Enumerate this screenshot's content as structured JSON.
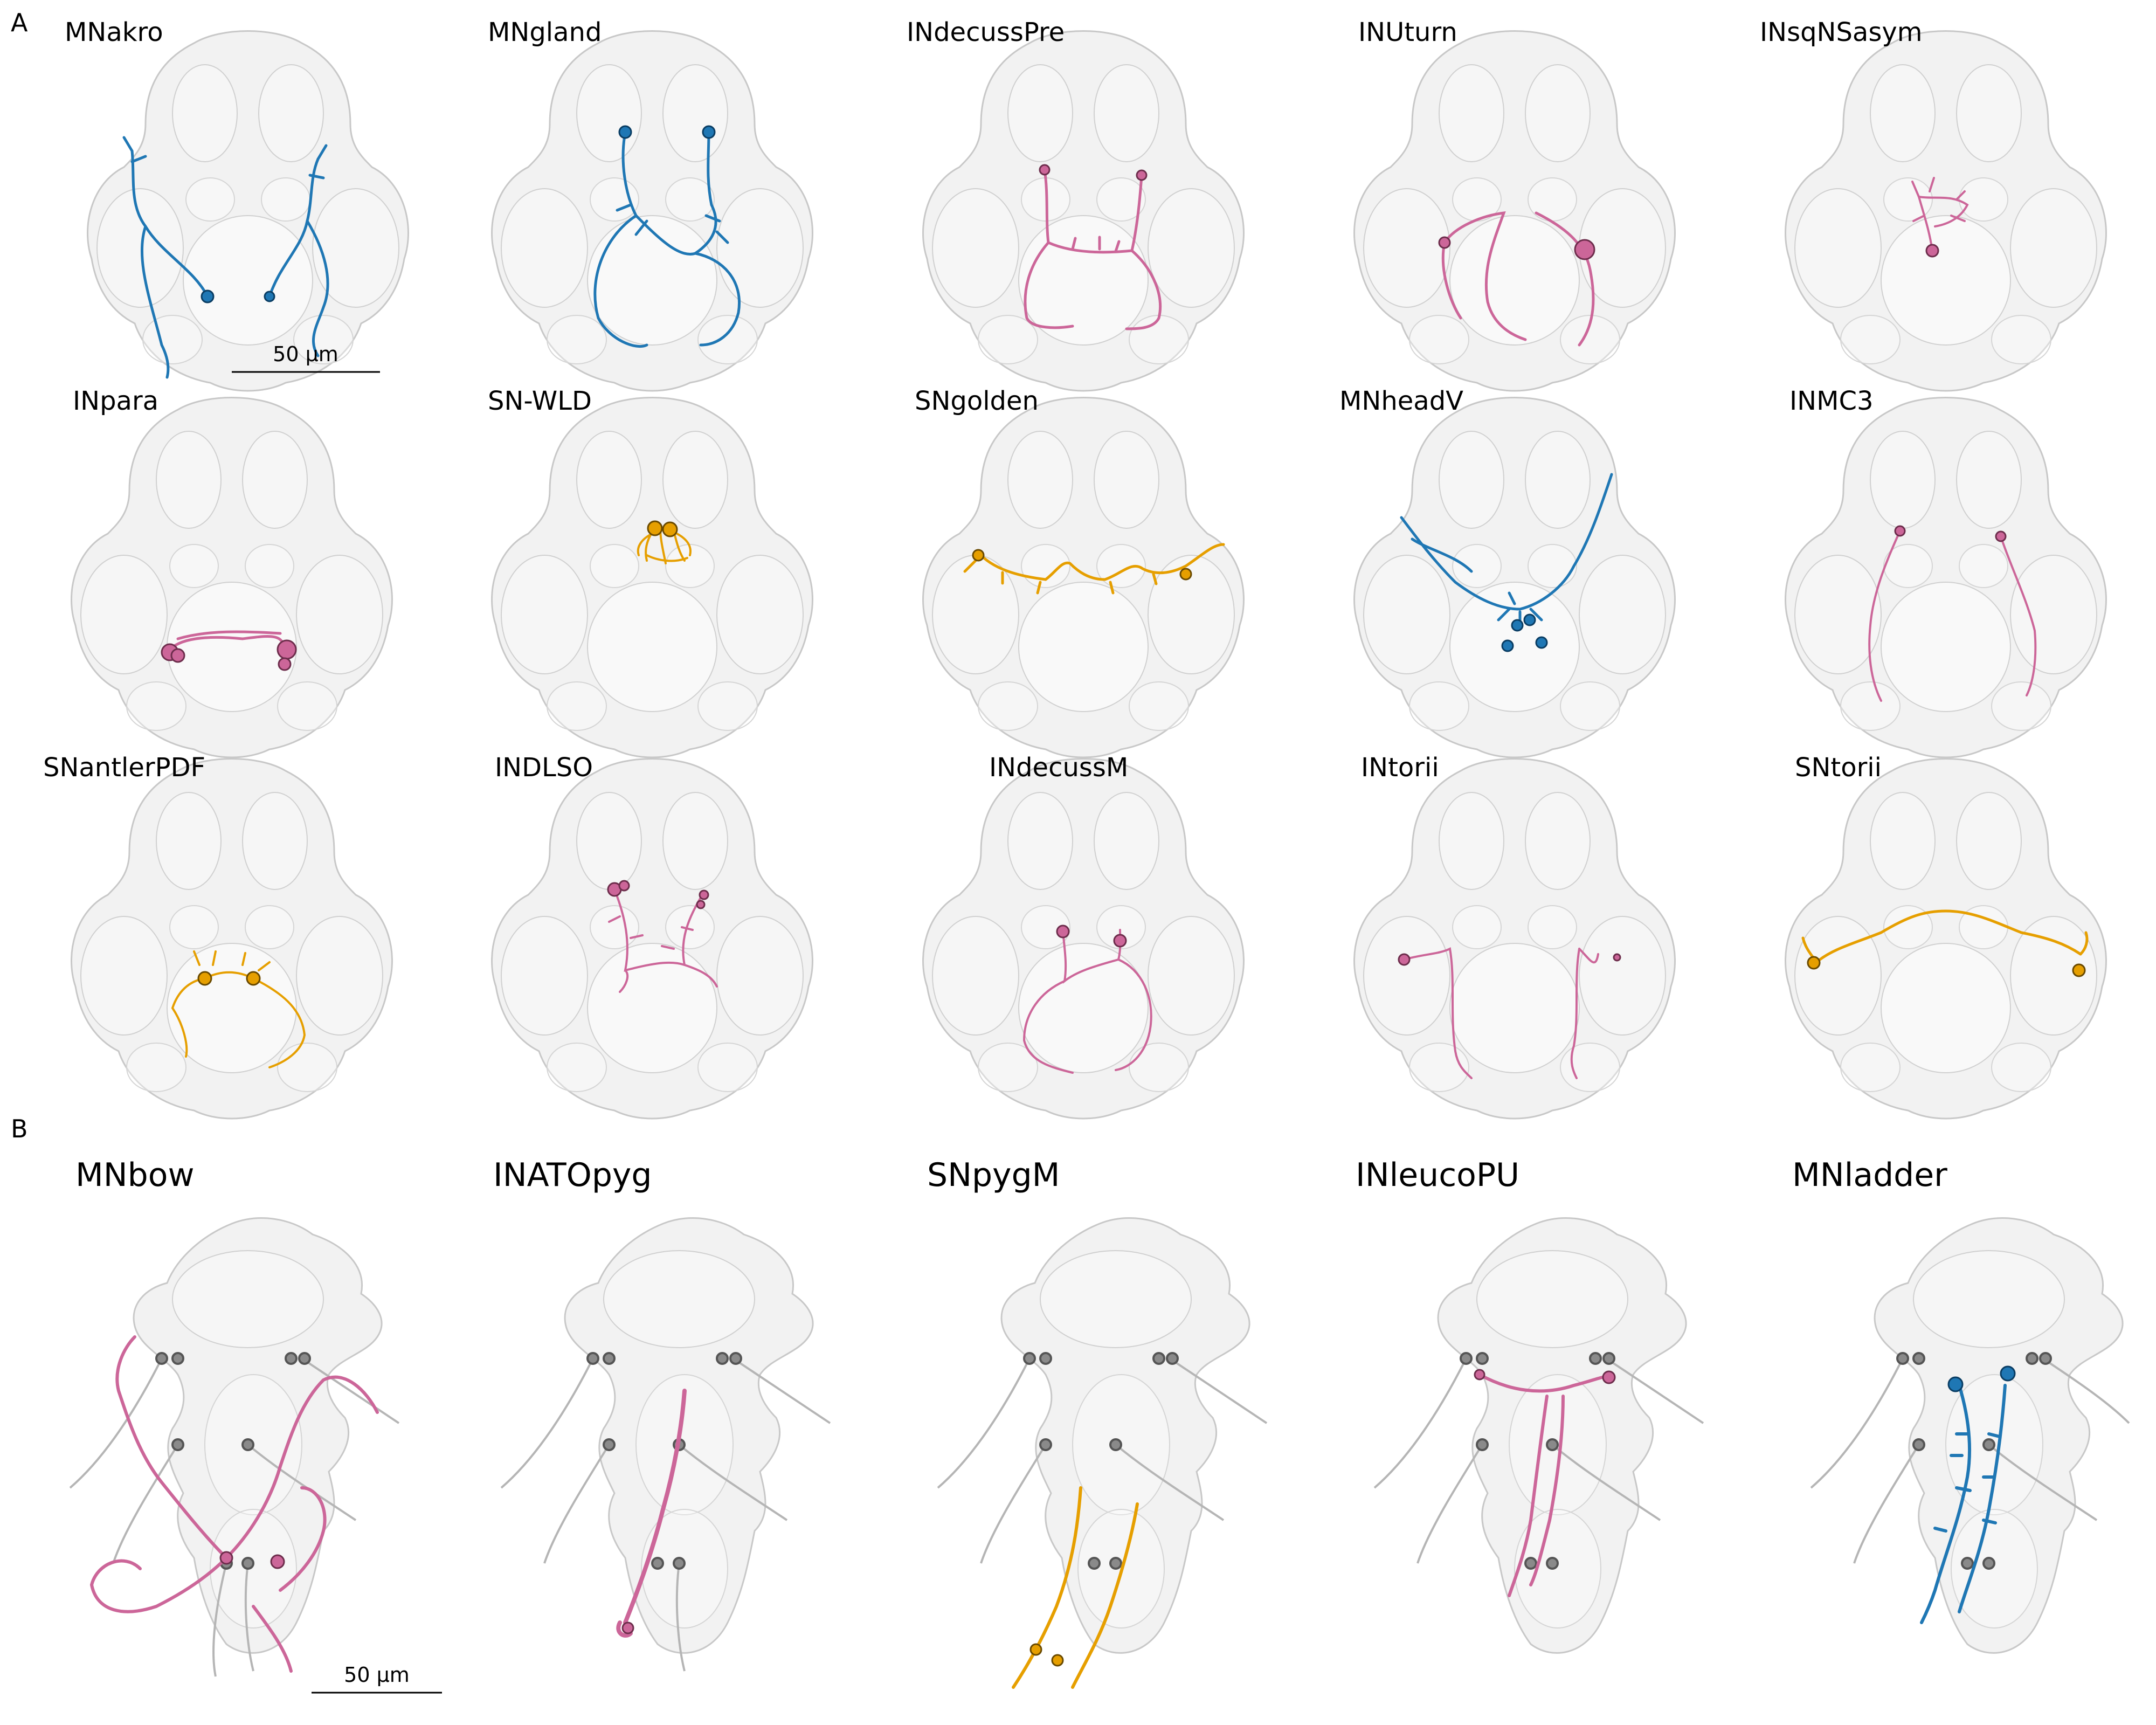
{
  "panels": [
    {
      "label": "A",
      "neurons": [
        {
          "name": "MNakro",
          "color": "blue"
        },
        {
          "name": "MNgland",
          "color": "blue"
        },
        {
          "name": "INdecussPre",
          "color": "pink"
        },
        {
          "name": "INUturn",
          "color": "pink"
        },
        {
          "name": "INsqNSasym",
          "color": "pink"
        },
        {
          "name": "INpara",
          "color": "pink"
        },
        {
          "name": "SN-WLD",
          "color": "orange"
        },
        {
          "name": "SNgolden",
          "color": "orange"
        },
        {
          "name": "MNheadV",
          "color": "blue"
        },
        {
          "name": "INMC3",
          "color": "pink"
        },
        {
          "name": "SNantlerPDF",
          "color": "orange"
        },
        {
          "name": "INDLSO",
          "color": "pink"
        },
        {
          "name": "INdecussM",
          "color": "pink"
        },
        {
          "name": "INtorii",
          "color": "pink"
        },
        {
          "name": "SNtorii",
          "color": "orange"
        }
      ],
      "scale_bar": "50 μm"
    },
    {
      "label": "B",
      "neurons": [
        {
          "name": "MNbow",
          "color": "pink"
        },
        {
          "name": "INATOpyg",
          "color": "pink"
        },
        {
          "name": "SNpygM",
          "color": "orange"
        },
        {
          "name": "INleucoPU",
          "color": "pink"
        },
        {
          "name": "MNladder",
          "color": "blue"
        }
      ],
      "scale_bar": "50 μm"
    }
  ],
  "colors": {
    "blue": "#1f77b4",
    "pink": "#cc6699",
    "orange": "#e69f00",
    "body": "#e6e6e6",
    "body_edge": "#bdbdbd",
    "grey_soma": "#8a8a8a"
  }
}
